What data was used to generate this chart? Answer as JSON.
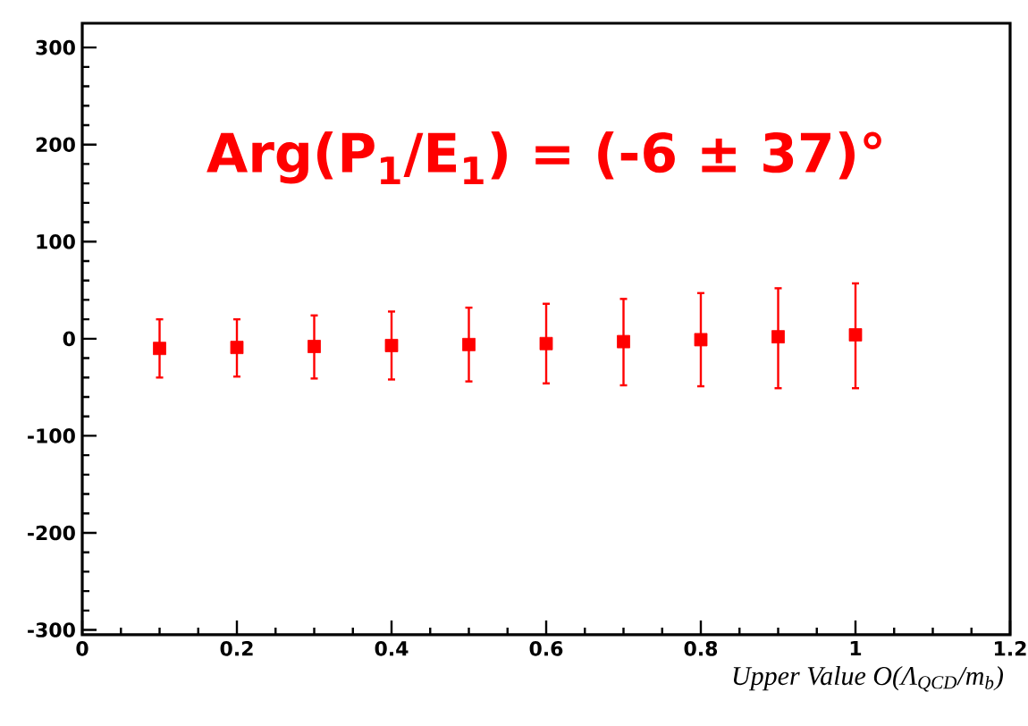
{
  "chart_data": {
    "type": "scatter",
    "x": [
      0.1,
      0.2,
      0.3,
      0.4,
      0.5,
      0.6,
      0.7,
      0.8,
      0.9,
      1.0
    ],
    "series": [
      {
        "color": "#ff0000",
        "values": [
          -10,
          -9,
          -8,
          -7,
          -6,
          -5,
          -3,
          -1,
          2,
          4
        ],
        "errors": [
          [
            -40,
            20
          ],
          [
            -39,
            20
          ],
          [
            -41,
            24
          ],
          [
            -42,
            28
          ],
          [
            -44,
            32
          ],
          [
            -46,
            36
          ],
          [
            -48,
            41
          ],
          [
            -49,
            47
          ],
          [
            -51,
            52
          ],
          [
            -51,
            57
          ]
        ]
      }
    ],
    "marker": "square",
    "xlabel": "Upper Value O(Λ$_{QCD}$/m$_{b}$)",
    "annotations": [
      "Arg(P$_{1}$/E$_{1}$) = (-6 ± 37)°"
    ],
    "xlim": [
      0,
      1.2
    ],
    "xticks": [
      0,
      0.2,
      0.4,
      0.6,
      0.8,
      1,
      1.2
    ],
    "ylim": [
      -305,
      325
    ],
    "yticks": [
      -300,
      -200,
      -100,
      0,
      100,
      200,
      300
    ],
    "grid": false
  }
}
